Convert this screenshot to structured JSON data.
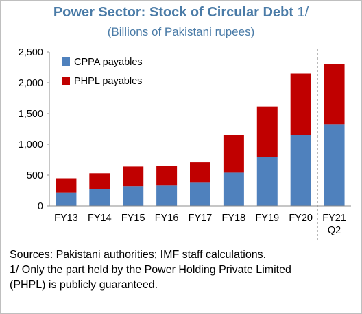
{
  "title": "Power Sector: Stock of Circular Debt",
  "title_note": "1/",
  "subtitle": "(Billions of Pakistani rupees)",
  "colors": {
    "title": "#4a7ba7",
    "cppa": "#4f81bd",
    "phpl": "#c00000",
    "divider": "#8c8c8c"
  },
  "notes": {
    "sources": "Sources: Pakistani authorities; IMF staff calculations.",
    "footnote_line1": "1/ Only the part held by the Power Holding Private Limited",
    "footnote_line2": "(PHPL) is publicly guaranteed."
  },
  "chart_data": {
    "type": "bar",
    "stacked": true,
    "categories": [
      [
        "FY13"
      ],
      [
        "FY14"
      ],
      [
        "FY15"
      ],
      [
        "FY16"
      ],
      [
        "FY17"
      ],
      [
        "FY18"
      ],
      [
        "FY19"
      ],
      [
        "FY20"
      ],
      [
        "FY21",
        "Q2"
      ]
    ],
    "series": [
      {
        "name": "CPPA payables",
        "color": "#4f81bd",
        "values": [
          215,
          270,
          320,
          330,
          385,
          540,
          800,
          1145,
          1330
        ]
      },
      {
        "name": "PHPL payables",
        "color": "#c00000",
        "values": [
          235,
          260,
          320,
          325,
          325,
          615,
          815,
          1005,
          970
        ]
      }
    ],
    "ylim": [
      0,
      2500
    ],
    "yticks": [
      0,
      500,
      1000,
      1500,
      2000,
      2500
    ],
    "ytick_labels": [
      "0",
      "500",
      "1,000",
      "1,500",
      "2,000",
      "2,500"
    ],
    "grid": false,
    "legend_position": "top-left",
    "divider_before_category": "FY21"
  }
}
